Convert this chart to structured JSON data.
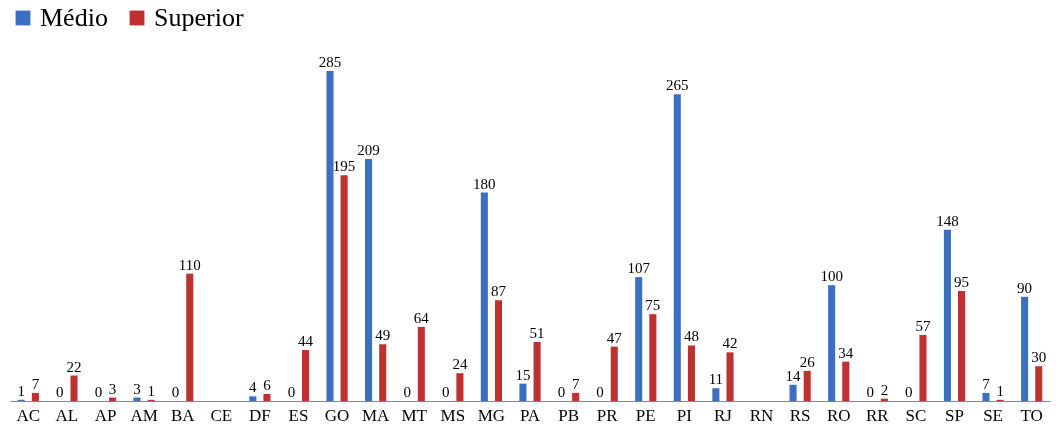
{
  "chart_data": {
    "type": "bar",
    "categories": [
      "AC",
      "AL",
      "AP",
      "AM",
      "BA",
      "CE",
      "DF",
      "ES",
      "GO",
      "MA",
      "MT",
      "MS",
      "MG",
      "PA",
      "PB",
      "PR",
      "PE",
      "PI",
      "RJ",
      "RN",
      "RS",
      "RO",
      "RR",
      "SC",
      "SP",
      "SE",
      "TO"
    ],
    "series": [
      {
        "name": "Médio",
        "color": "#3d6fc0",
        "values": [
          1,
          0,
          0,
          3,
          0,
          null,
          4,
          0,
          285,
          209,
          0,
          0,
          180,
          15,
          0,
          0,
          107,
          265,
          11,
          null,
          14,
          100,
          0,
          0,
          148,
          7,
          90
        ]
      },
      {
        "name": "Superior",
        "color": "#c0302e",
        "values": [
          7,
          22,
          3,
          1,
          110,
          null,
          6,
          44,
          195,
          49,
          64,
          24,
          87,
          51,
          7,
          47,
          75,
          48,
          42,
          null,
          26,
          34,
          2,
          57,
          95,
          1,
          30
        ]
      }
    ],
    "data_labels": true,
    "legend": "top",
    "grid": false
  }
}
